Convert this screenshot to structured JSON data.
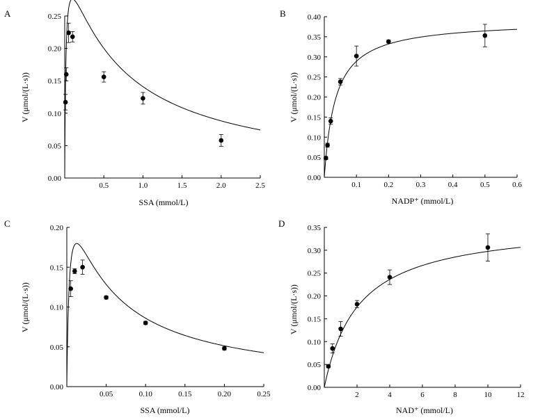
{
  "chart_data": [
    {
      "panel": "A",
      "type": "scatter",
      "xlabel": "SSA (mmol/L)",
      "ylabel": "V (μmol/(L·s))",
      "xlim": [
        0,
        2.5
      ],
      "ylim": [
        0,
        0.25
      ],
      "xticks": [
        "0.5",
        "1.0",
        "1.5",
        "2.0",
        "2.5"
      ],
      "yticks": [
        "0.00",
        "0.05",
        "0.10",
        "0.15",
        "0.20",
        "0.25"
      ],
      "fit": {
        "model": "substrate_inhibition",
        "vmax": 0.36,
        "km": 0.015,
        "ki": 0.65
      },
      "series": [
        {
          "x": [
            0.01,
            0.02,
            0.05,
            0.1,
            0.5,
            1.0,
            2.0
          ],
          "y": [
            0.117,
            0.16,
            0.224,
            0.218,
            0.156,
            0.123,
            0.058
          ],
          "err": [
            0.012,
            0.01,
            0.015,
            0.008,
            0.008,
            0.009,
            0.009
          ]
        }
      ]
    },
    {
      "panel": "B",
      "type": "scatter",
      "xlabel": "NADP⁺ (mmol/L)",
      "ylabel": "V (μmol/(L·s))",
      "xlim": [
        0,
        0.6
      ],
      "ylim": [
        0,
        0.4
      ],
      "xticks": [
        "0.1",
        "0.2",
        "0.3",
        "0.4",
        "0.5",
        "0.6"
      ],
      "yticks": [
        "0.00",
        "0.05",
        "0.10",
        "0.15",
        "0.20",
        "0.25",
        "0.30",
        "0.35",
        "0.40"
      ],
      "fit": {
        "model": "michaelis_menten",
        "vmax": 0.39,
        "km": 0.035
      },
      "series": [
        {
          "x": [
            0.005,
            0.01,
            0.02,
            0.05,
            0.1,
            0.2,
            0.5
          ],
          "y": [
            0.048,
            0.08,
            0.14,
            0.238,
            0.302,
            0.338,
            0.353
          ],
          "err": [
            0.004,
            0.005,
            0.008,
            0.008,
            0.025,
            0.004,
            0.028
          ]
        }
      ]
    },
    {
      "panel": "C",
      "type": "scatter",
      "xlabel": "SSA (mmol/L)",
      "ylabel": "V (μmol/(L·s))",
      "xlim": [
        0,
        0.25
      ],
      "ylim": [
        0,
        0.2
      ],
      "xticks": [
        "0.05",
        "0.10",
        "0.15",
        "0.20",
        "0.25"
      ],
      "yticks": [
        "0.00",
        "0.05",
        "0.10",
        "0.15",
        "0.20"
      ],
      "fit": {
        "model": "substrate_inhibition",
        "vmax": 0.28,
        "km": 0.0035,
        "ki": 0.045
      },
      "series": [
        {
          "x": [
            0.005,
            0.01,
            0.02,
            0.05,
            0.1,
            0.2
          ],
          "y": [
            0.123,
            0.145,
            0.15,
            0.112,
            0.08,
            0.048
          ],
          "err": [
            0.01,
            0.003,
            0.009,
            0.002,
            0.002,
            0.002
          ]
        }
      ]
    },
    {
      "panel": "D",
      "type": "scatter",
      "xlabel": "NAD⁺ (mmol/L)",
      "ylabel": "V (μmol/(L·s))",
      "xlim": [
        0,
        12
      ],
      "ylim": [
        0,
        0.35
      ],
      "xticks": [
        "2",
        "4",
        "6",
        "8",
        "10",
        "12"
      ],
      "yticks": [
        "0.00",
        "0.05",
        "0.10",
        "0.15",
        "0.20",
        "0.25",
        "0.30",
        "0.35"
      ],
      "fit": {
        "model": "michaelis_menten",
        "vmax": 0.36,
        "km": 2.1
      },
      "series": [
        {
          "x": [
            0.25,
            0.5,
            1.0,
            2.0,
            4.0,
            10.0
          ],
          "y": [
            0.046,
            0.085,
            0.128,
            0.182,
            0.241,
            0.306
          ],
          "err": [
            0.003,
            0.01,
            0.016,
            0.008,
            0.016,
            0.03
          ]
        }
      ]
    }
  ]
}
